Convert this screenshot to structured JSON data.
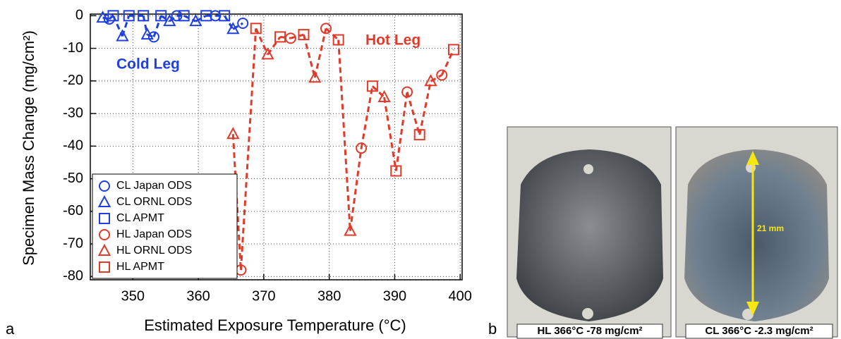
{
  "chart_data": {
    "type": "scatter",
    "x_label": "Estimated Exposure Temperature (°C)",
    "y_label": "Specimen Mass Change (mg/cm²)",
    "xlim": [
      343.5,
      400.3
    ],
    "xticks": [
      350,
      360,
      370,
      380,
      390,
      400
    ],
    "ylim": [
      -81,
      0.5
    ],
    "yticks": [
      0,
      -10,
      -20,
      -30,
      -40,
      -50,
      -60,
      -70,
      -80
    ],
    "grid": true,
    "legend": "lower left",
    "line_style": "dashed",
    "annotations": [
      {
        "text": "Cold Leg",
        "color": "#1f3fe0"
      },
      {
        "text": "Hot Leg",
        "color": "#e03a2a"
      }
    ],
    "series": [
      {
        "name": "CL Japan ODS",
        "marker": "circle",
        "color": "#1f3fe0",
        "x": [
          346.4,
          353.2,
          356.7,
          362.6,
          366.8
        ],
        "values": [
          -1,
          -6.5,
          0,
          0,
          -2.3
        ]
      },
      {
        "name": "CL ORNL ODS",
        "marker": "triangle",
        "color": "#1f3fe0",
        "x": [
          345.4,
          348.4,
          352.2,
          355.6,
          359.6,
          365.3
        ],
        "values": [
          -0.6,
          -6.3,
          -5.8,
          -1.7,
          -1.7,
          -4.1
        ]
      },
      {
        "name": "CL APMT",
        "marker": "square",
        "color": "#1f3fe0",
        "x": [
          347,
          349.4,
          351.6,
          354.3,
          357.8,
          361.2,
          364
        ],
        "values": [
          0,
          0,
          0,
          0,
          0,
          0,
          0
        ]
      },
      {
        "name": "HL Japan ODS",
        "marker": "circle",
        "color": "#e03a2a",
        "x": [
          366.5,
          374.1,
          379.5,
          384.9,
          391.9,
          397.2
        ],
        "values": [
          -78,
          -6.9,
          -3.9,
          -40.6,
          -23.4,
          -18.2
        ]
      },
      {
        "name": "HL ORNL ODS",
        "marker": "triangle",
        "color": "#e03a2a",
        "x": [
          365.3,
          370.6,
          377.8,
          383.2,
          388.4,
          395.5
        ],
        "values": [
          -36.3,
          -11.9,
          -19,
          -66,
          -25,
          -20.1
        ]
      },
      {
        "name": "HL APMT",
        "marker": "square",
        "color": "#e03a2a",
        "x": [
          368.8,
          372.5,
          376.1,
          381.4,
          386.6,
          390.2,
          393.8,
          399
        ],
        "values": [
          -3.9,
          -6.5,
          -5.8,
          -7.4,
          -21.6,
          -47.6,
          -36.5,
          -10.4
        ]
      }
    ]
  },
  "panels": [
    "a",
    "b"
  ],
  "images": [
    {
      "caption": "HL 366°C -78 mg/cm²"
    },
    {
      "caption": "CL 366°C -2.3 mg/cm²"
    }
  ],
  "scale_label": "21 mm"
}
